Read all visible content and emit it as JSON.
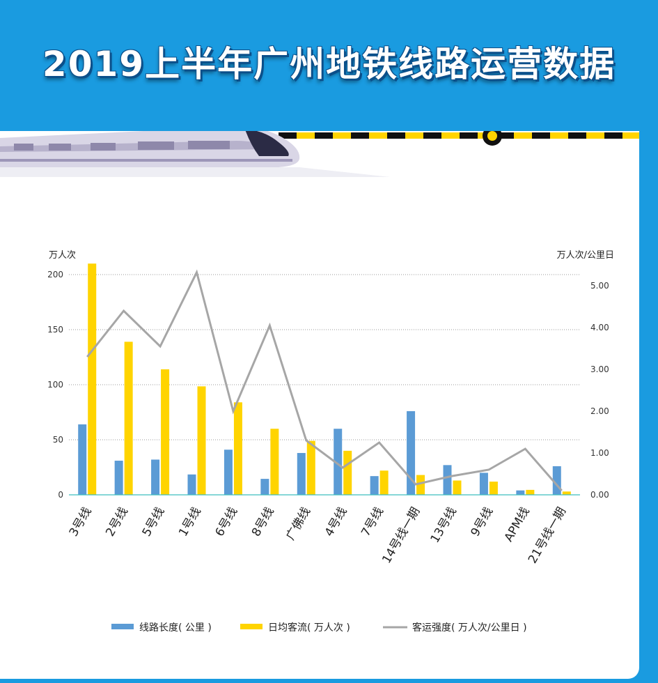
{
  "title": "2019上半年广州地铁线路运营数据",
  "colors": {
    "background": "#1a9be0",
    "panel": "#ffffff",
    "length_bar": "#5b9bd5",
    "flow_bar": "#ffd400",
    "intensity_line": "#a6a6a6",
    "axis_line": "#3fbfbf",
    "track_yellow": "#ffd400",
    "track_black": "#111111"
  },
  "chart_data": {
    "type": "bar",
    "categories": [
      "3号线",
      "2号线",
      "5号线",
      "1号线",
      "6号线",
      "8号线",
      "广佛线",
      "4号线",
      "7号线",
      "14号线一期",
      "13号线",
      "9号线",
      "APM线",
      "21号线一期"
    ],
    "y_left_unit": "万人次",
    "y_right_unit": "万人次/公里日",
    "ylim_left": [
      0,
      220
    ],
    "ylim_right": [
      0,
      5.5
    ],
    "y_left_ticks": [
      "0",
      "50",
      "100",
      "150",
      "200"
    ],
    "y_right_ticks": [
      "0.00",
      "1.00",
      "2.00",
      "3.00",
      "4.00",
      "5.00"
    ],
    "series": [
      {
        "name": "线路长度( 公里 )",
        "type": "bar",
        "axis": "left",
        "values": [
          64,
          31,
          32,
          18.5,
          41,
          14.5,
          38,
          60,
          17,
          76,
          27,
          20,
          4,
          26
        ]
      },
      {
        "name": "日均客流( 万人次 )",
        "type": "bar",
        "axis": "left",
        "values": [
          210,
          139,
          114,
          98.5,
          84,
          60,
          49,
          40,
          22,
          18,
          13,
          12,
          4.5,
          3
        ]
      },
      {
        "name": "客运强度( 万人次/公里日 )",
        "type": "line",
        "axis": "right",
        "values": [
          3.3,
          4.4,
          3.55,
          5.32,
          2.0,
          4.05,
          1.3,
          0.65,
          1.25,
          0.25,
          0.45,
          0.6,
          1.1,
          0.1
        ]
      }
    ],
    "grid": true,
    "legend_position": "bottom"
  }
}
